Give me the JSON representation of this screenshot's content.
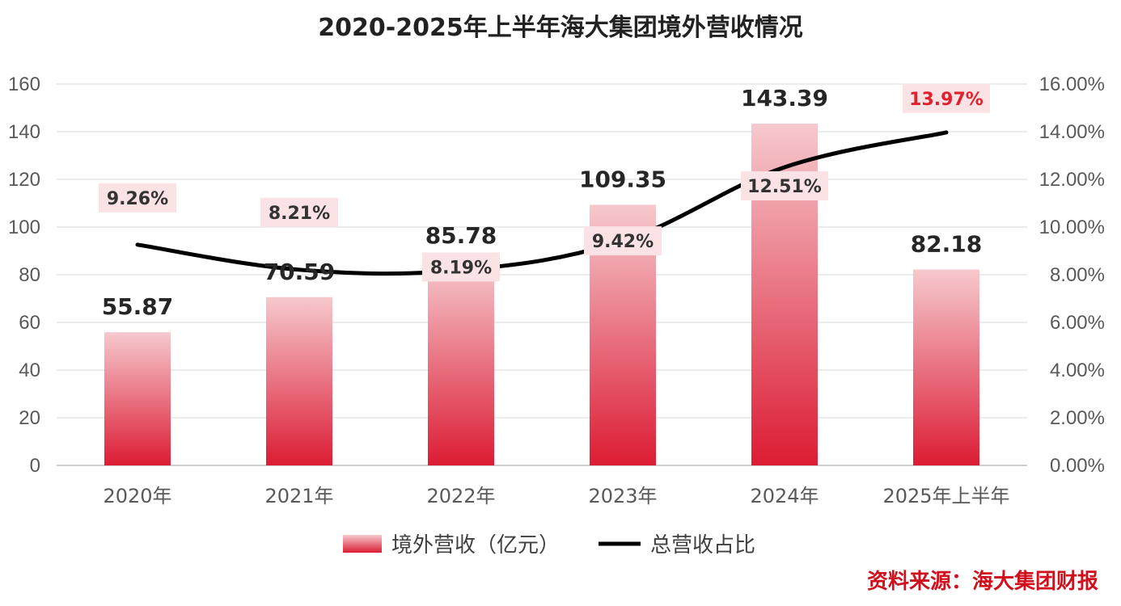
{
  "chart_data": {
    "type": "bar+line",
    "title": "2020-2025年上半年海大集团境外营收情况",
    "categories": [
      "2020年",
      "2021年",
      "2022年",
      "2023年",
      "2024年",
      "2025年上半年"
    ],
    "series": [
      {
        "name": "境外营收（亿元）",
        "type": "bar",
        "axis": "left",
        "values": [
          55.87,
          70.59,
          85.78,
          109.35,
          143.39,
          82.18
        ],
        "labels": [
          "55.87",
          "70.59",
          "85.78",
          "109.35",
          "143.39",
          "82.18"
        ],
        "color_top": "#f6c9ce",
        "color_bottom": "#dc1c34"
      },
      {
        "name": "总营收占比",
        "type": "line",
        "axis": "right",
        "values": [
          9.26,
          8.21,
          8.19,
          9.42,
          12.51,
          13.97
        ],
        "labels": [
          "9.26%",
          "8.21%",
          "8.19%",
          "9.42%",
          "12.51%",
          "13.97%"
        ],
        "highlight_index": 5,
        "color": "#000000"
      }
    ],
    "y_left": {
      "min": 0,
      "max": 160,
      "ticks": [
        "0",
        "20",
        "40",
        "60",
        "80",
        "100",
        "120",
        "140",
        "160"
      ]
    },
    "y_right": {
      "min": 0,
      "max": 16,
      "ticks": [
        "0.00%",
        "2.00%",
        "4.00%",
        "6.00%",
        "8.00%",
        "10.00%",
        "12.00%",
        "14.00%",
        "16.00%"
      ]
    },
    "grid": true,
    "legend": "bottom-center"
  },
  "footer": {
    "source": "资料来源：海大集团财报"
  },
  "colors": {
    "grid": "#d9d9d9",
    "label_box": "#fbe3e5",
    "highlight": "#e0202c",
    "source": "#d0101e"
  }
}
